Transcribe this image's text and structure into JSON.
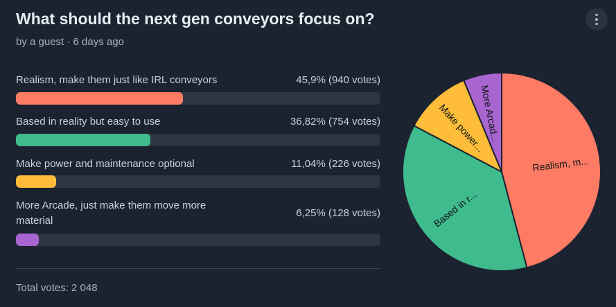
{
  "poll": {
    "title": "What should the next gen conveyors focus on?",
    "byline": "by a guest · 6 days ago",
    "total_label": "Total votes: 2 048"
  },
  "options": [
    {
      "label": "Realism, make them just like IRL conveyors",
      "result": "45,9% (940 votes)",
      "pie_label": "Realism, m...",
      "color": "#ff7b64"
    },
    {
      "label": "Based in reality but easy to use",
      "result": "36,82% (754 votes)",
      "pie_label": "Based in r...",
      "color": "#3fbb8e"
    },
    {
      "label": "Make power and maintenance optional",
      "result": "11,04% (226 votes)",
      "pie_label": "Make power...",
      "color": "#ffbd3a"
    },
    {
      "label": "More Arcade, just make them move more material",
      "result": "6,25% (128 votes)",
      "pie_label": "More Arcad...",
      "color": "#a865d0"
    }
  ],
  "chart_data": {
    "type": "pie",
    "categories": [
      "Realism, make them just like IRL conveyors",
      "Based in reality but easy to use",
      "Make power and maintenance optional",
      "More Arcade, just make them move more material"
    ],
    "values": [
      940,
      754,
      226,
      128
    ],
    "percent": [
      45.9,
      36.82,
      11.04,
      6.25
    ],
    "colors": [
      "#ff7b64",
      "#3fbb8e",
      "#ffbd3a",
      "#a865d0"
    ]
  },
  "icons": {
    "menu": "more-vertical-icon"
  }
}
